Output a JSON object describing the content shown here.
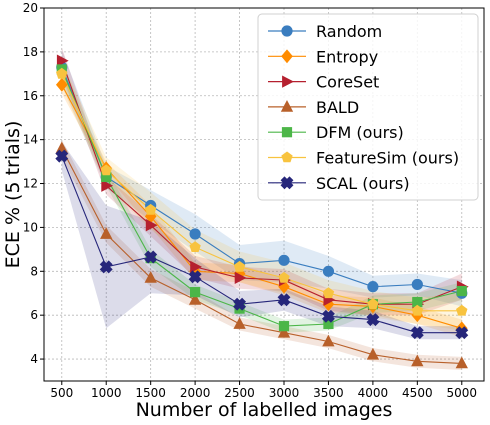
{
  "chart_data": {
    "type": "line",
    "xlabel": "Number of labelled images",
    "ylabel": "ECE % (5 trials)",
    "x": [
      500,
      1000,
      1500,
      2000,
      2500,
      3000,
      3500,
      4000,
      4500,
      5000
    ],
    "xlim": [
      300,
      5250
    ],
    "ylim": [
      3,
      20
    ],
    "xticks": [
      "500",
      "1000",
      "1500",
      "2000",
      "2500",
      "3000",
      "3500",
      "4000",
      "4500",
      "5000"
    ],
    "yticks": [
      "4",
      "6",
      "8",
      "10",
      "12",
      "14",
      "16",
      "18",
      "20"
    ],
    "grid": true,
    "legend_position": "top-right",
    "series": [
      {
        "name": "Random",
        "color": "#3a7dbf",
        "marker": "circle",
        "values": [
          17.3,
          12.3,
          11.0,
          9.7,
          8.35,
          8.5,
          8.0,
          7.3,
          7.4,
          7.0
        ],
        "lower": [
          16.5,
          11.8,
          10.3,
          8.9,
          7.6,
          7.5,
          7.2,
          6.8,
          6.9,
          6.4
        ],
        "upper": [
          18.1,
          12.8,
          11.7,
          10.6,
          9.2,
          9.4,
          8.7,
          7.8,
          7.9,
          7.6
        ]
      },
      {
        "name": "Entropy",
        "color": "#ff8c00",
        "marker": "diamond",
        "values": [
          16.5,
          12.7,
          10.5,
          8.0,
          7.9,
          7.3,
          6.5,
          6.4,
          6.0,
          5.4
        ],
        "lower": [
          16.1,
          12.4,
          10.0,
          7.6,
          7.5,
          6.9,
          6.1,
          6.0,
          5.6,
          5.0
        ],
        "upper": [
          16.9,
          13.0,
          11.0,
          8.4,
          8.3,
          7.7,
          6.9,
          6.8,
          6.4,
          5.8
        ]
      },
      {
        "name": "CoreSet",
        "color": "#b5202f",
        "marker": "triangle-right",
        "values": [
          17.6,
          11.9,
          10.1,
          8.2,
          7.7,
          7.6,
          6.7,
          6.5,
          6.5,
          7.3
        ],
        "lower": [
          17.0,
          11.5,
          9.6,
          7.7,
          7.2,
          7.1,
          6.2,
          6.0,
          6.0,
          6.7
        ],
        "upper": [
          18.2,
          12.3,
          10.6,
          8.7,
          8.2,
          8.1,
          7.2,
          7.0,
          7.0,
          7.9
        ]
      },
      {
        "name": "BALD",
        "color": "#b8602a",
        "marker": "triangle-up",
        "values": [
          13.6,
          9.7,
          7.7,
          6.7,
          5.6,
          5.2,
          4.8,
          4.2,
          3.9,
          3.8
        ],
        "lower": [
          13.2,
          9.3,
          7.3,
          6.3,
          5.3,
          4.9,
          4.5,
          3.9,
          3.6,
          3.5
        ],
        "upper": [
          14.0,
          10.1,
          8.1,
          7.1,
          5.9,
          5.5,
          5.1,
          4.5,
          4.2,
          4.1
        ]
      },
      {
        "name": "DFM (ours)",
        "color": "#4cb648",
        "marker": "square",
        "values": [
          17.2,
          12.3,
          8.6,
          7.05,
          6.3,
          5.5,
          5.6,
          6.5,
          6.6,
          7.1
        ],
        "lower": [
          16.8,
          11.9,
          8.2,
          6.7,
          6.0,
          5.2,
          5.3,
          6.1,
          6.2,
          6.7
        ],
        "upper": [
          17.6,
          12.7,
          9.0,
          7.4,
          6.6,
          5.8,
          5.9,
          6.9,
          7.0,
          7.5
        ]
      },
      {
        "name": "FeatureSim (ours)",
        "color": "#f8c33f",
        "marker": "pentagon",
        "values": [
          17.0,
          12.6,
          10.8,
          9.1,
          8.2,
          7.7,
          7.0,
          6.5,
          6.2,
          6.2
        ],
        "lower": [
          16.4,
          11.9,
          9.9,
          8.3,
          7.5,
          7.0,
          6.4,
          5.9,
          5.6,
          5.3
        ],
        "upper": [
          17.6,
          13.2,
          11.6,
          9.9,
          8.9,
          8.4,
          7.6,
          7.1,
          6.8,
          7.0
        ]
      },
      {
        "name": "SCAL (ours)",
        "color": "#26267a",
        "marker": "x",
        "values": [
          13.25,
          8.2,
          8.65,
          7.75,
          6.5,
          6.7,
          5.95,
          5.8,
          5.2,
          5.2
        ],
        "lower": [
          12.6,
          5.4,
          7.0,
          6.9,
          5.9,
          6.2,
          5.5,
          5.4,
          4.9,
          4.9
        ],
        "upper": [
          13.9,
          11.0,
          10.3,
          8.6,
          7.1,
          7.2,
          6.4,
          6.2,
          5.5,
          5.5
        ]
      }
    ]
  }
}
